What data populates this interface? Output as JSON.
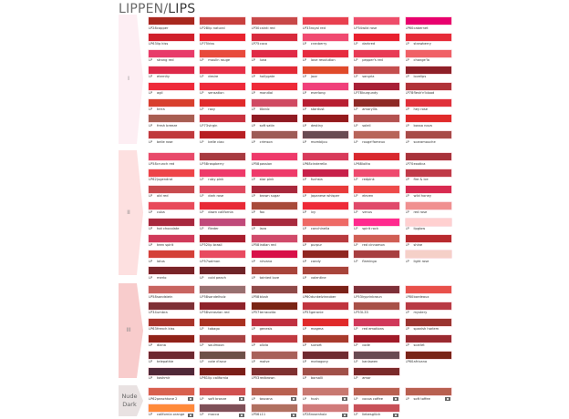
{
  "header": {
    "title_part1": "LIPPEN/",
    "title_part2": "LIPS"
  },
  "sections": [
    {
      "label": "I",
      "color": "#fdeef3",
      "rows": [
        [
          [
            "LP28",
            "copper",
            "#a8281e"
          ],
          [
            "LP28",
            "lip natural",
            "#c8413e"
          ],
          [
            "LP30",
            "cainti red",
            "#c84848"
          ],
          [
            "LP33",
            "royal red",
            "#e8404f"
          ],
          [
            "LP34",
            "wild rose",
            "#ee4d6a"
          ],
          [
            "LP60",
            "cabernet",
            "#e8006e"
          ]
        ],
        [
          [
            "LP63",
            "lip kiss",
            "#d01f2b"
          ],
          [
            "LP75",
            "kiss",
            "#e8232e"
          ],
          [
            "LP75",
            "coco",
            "#d82a3c"
          ],
          [
            "LP",
            "cranberry",
            "#f04a70"
          ],
          [
            "LP",
            "darkred",
            "#e8202e"
          ],
          [
            "LP",
            "strawberry",
            "#e62b38"
          ]
        ],
        [
          [
            "LP",
            "strong red",
            "#e83b6a"
          ],
          [
            "LP",
            "moulin rouge",
            "#e84a3c"
          ],
          [
            "LP",
            "luna",
            "#e02a46"
          ],
          [
            "LP",
            "love revolution",
            "#e62b3f"
          ],
          [
            "LP",
            "pepper's red",
            "#e83a55"
          ],
          [
            "LP",
            "change'la",
            "#f06066"
          ]
        ],
        [
          [
            "LP",
            "eternity",
            "#dd2a4a"
          ],
          [
            "LP",
            "desire",
            "#e83048"
          ],
          [
            "LP",
            "hollygate",
            "#e32a36"
          ],
          [
            "LP",
            "jazz",
            "#e04a2a"
          ],
          [
            "LP",
            "sangria",
            "#c44e4e"
          ],
          [
            "LP",
            "lovelips",
            "#8e2028"
          ]
        ],
        [
          [
            "LP",
            "agil",
            "#ee2a3a"
          ],
          [
            "LP",
            "sensation",
            "#ee2a3a"
          ],
          [
            "LP",
            "mondial",
            "#ee2a38"
          ],
          [
            "LP",
            "everlong",
            "#f0407a"
          ],
          [
            "LP78",
            "burgundy",
            "#a82036"
          ],
          [
            "LP78",
            "flesh'n'blood",
            "#b03238"
          ]
        ],
        [
          [
            "LP",
            "terra",
            "#d8402e"
          ],
          [
            "LP",
            "roxy",
            "#e02a2a"
          ],
          [
            "LP",
            "titanic",
            "#d04a62"
          ],
          [
            "LP",
            "stardust",
            "#b81f32"
          ],
          [
            "LP",
            "amaryllis",
            "#8e2a26"
          ],
          [
            "LP",
            "hey rose",
            "#e0303a"
          ]
        ],
        [
          [
            "LP",
            "fresh breeze",
            "#a85e52"
          ],
          [
            "LP73",
            "virgin",
            "#c8323e"
          ],
          [
            "LP",
            "soft satin",
            "#901a22"
          ],
          [
            "LP",
            "destiny",
            "#941a1c"
          ],
          [
            "LP",
            "soleil",
            "#b45250"
          ],
          [
            "LP",
            "bossa nova",
            "#e02a2a"
          ]
        ],
        [
          [
            "LP",
            "belle rose",
            "#c0383c"
          ],
          [
            "LP",
            "belle ciao",
            "#b81e22"
          ],
          [
            "LP",
            "crimson",
            "#9e5a56"
          ],
          [
            "LP",
            "mombijou",
            "#6a4a52"
          ],
          [
            "LP",
            "rouge'fameux",
            "#b8645a"
          ],
          [
            "LP",
            "scaramouche",
            "#a84a48"
          ]
        ]
      ]
    },
    {
      "label": "II",
      "color": "#fde0e0",
      "rows": [
        [
          [
            "LP58",
            "crunch red",
            "#e84a6a"
          ],
          [
            "LP58",
            "raspberry",
            "#a83a40"
          ],
          [
            "LP58",
            "passion",
            "#ee3a6a"
          ],
          [
            "LP68",
            "cinderella",
            "#d83a5a"
          ],
          [
            "LP68",
            "lolita",
            "#d8282e"
          ],
          [
            "LP70",
            "exotica",
            "#a8323a"
          ]
        ],
        [
          [
            "LP62",
            "jugendrot",
            "#ee4448"
          ],
          [
            "LP",
            "ruby pink",
            "#ee3a6a"
          ],
          [
            "LP",
            "star pink",
            "#ee3a6a"
          ],
          [
            "LP",
            "fuchsia",
            "#c8204a"
          ],
          [
            "LP",
            "redpink",
            "#ee4a6e"
          ],
          [
            "LP",
            "fire & ice",
            "#c03a48"
          ]
        ],
        [
          [
            "LP",
            "old red",
            "#c84a4e"
          ],
          [
            "LP",
            "dark rose",
            "#e04a60"
          ],
          [
            "LP",
            "brown sugar",
            "#a8283c"
          ],
          [
            "LP",
            "japanese whisper",
            "#e83a3a"
          ],
          [
            "LP",
            "eleven",
            "#ee4a4a"
          ],
          [
            "LP",
            "wild honey",
            "#d82a50"
          ]
        ],
        [
          [
            "LP",
            "cuba",
            "#e84a5a"
          ],
          [
            "LP",
            "dawn california",
            "#e82a36"
          ],
          [
            "LP",
            "fox",
            "#a84a3a"
          ],
          [
            "LP",
            "ivy",
            "#ee2a38"
          ],
          [
            "LP",
            "venus",
            "#e04a6a"
          ],
          [
            "LP",
            "red rose",
            "#f09090"
          ]
        ],
        [
          [
            "LP",
            "hot chocolate",
            "#a8283e"
          ],
          [
            "LP",
            "flieder",
            "#c04a7a"
          ],
          [
            "LP",
            "lava",
            "#a82a3e"
          ],
          [
            "LP",
            "conchinella",
            "#ee6a66"
          ],
          [
            "LP",
            "spirit rock",
            "#ff2a8e"
          ],
          [
            "LP",
            "lipglow",
            "#ffd0d0"
          ]
        ],
        [
          [
            "LP",
            "teen spirit",
            "#d03a5a"
          ],
          [
            "LP52",
            "lip brasil",
            "#a81e2e"
          ],
          [
            "LP58",
            "indian red",
            "#d04a6a"
          ],
          [
            "LP",
            "purpur",
            "#b83a3e"
          ],
          [
            "LP",
            "red cinnamon",
            "#d05e54"
          ],
          [
            "LP",
            "shine",
            "#b82a2e"
          ]
        ],
        [
          [
            "LP",
            "lotus",
            "#d44038"
          ],
          [
            "LP57",
            "salmon",
            "#e84a60"
          ],
          [
            "LP",
            "nirvana",
            "#d81048"
          ],
          [
            "LP",
            "candy",
            "#902620"
          ],
          [
            "LP",
            "flamingo",
            "#a83e40"
          ],
          [
            "LP",
            "light rose",
            "#f5d0c8"
          ]
        ],
        [
          [
            "LP",
            "merlo",
            "#7a2428"
          ],
          [
            "LP",
            "cold peach",
            "#6e2428"
          ],
          [
            "LP",
            "tainted love",
            "#a8443a"
          ],
          [
            "LP",
            "valentine",
            "#a8443a"
          ]
        ]
      ]
    },
    {
      "label": "III",
      "color": "#f8cccc",
      "rows": [
        [
          [
            "LP58",
            "sandstein",
            "#c86460"
          ],
          [
            "LP58",
            "sandelholz",
            "#987070"
          ],
          [
            "LP58",
            "blush",
            "#8e4a48"
          ],
          [
            "LP60",
            "dunkelzinnober",
            "#7a2218"
          ],
          [
            "LP53",
            "kyprinbraun",
            "#7e3038"
          ],
          [
            "LP80",
            "bordeaux",
            "#e8504a"
          ]
        ],
        [
          [
            "LP34",
            "umbra",
            "#7e3036"
          ],
          [
            "LP58",
            "venezian red",
            "#8e222a"
          ],
          [
            "LP57",
            "terracotta",
            "#7a2414"
          ],
          [
            "LP53",
            "geranie",
            "#c0343e"
          ],
          [
            "LP53",
            "L33",
            "#a85048"
          ],
          [
            "LP",
            "mystery",
            "#b83a44"
          ]
        ],
        [
          [
            "LP63",
            "french kiss",
            "#a8342a"
          ],
          [
            "LP",
            "tobago",
            "#a83020"
          ],
          [
            "LP",
            "genesis",
            "#c03040"
          ],
          [
            "LP",
            "magma",
            "#e02a2a"
          ],
          [
            "LP",
            "red emotions",
            "#d0385a"
          ],
          [
            "LP",
            "spanish harlem",
            "#9a3430"
          ]
        ],
        [
          [
            "LP",
            "diana",
            "#902218"
          ],
          [
            "LP",
            "soulmoon",
            "#a84242"
          ],
          [
            "LP",
            "olivia",
            "#c03a40"
          ],
          [
            "LP",
            "sunset",
            "#a83a2c"
          ],
          [
            "LP",
            "code",
            "#a01a28"
          ],
          [
            "LP",
            "scarlet",
            "#9a2a30"
          ]
        ],
        [
          [
            "LP",
            "telepathie",
            "#6e2830"
          ],
          [
            "LP",
            "cote d'azur",
            "#6e5048"
          ],
          [
            "LP",
            "malve",
            "#a8605a"
          ],
          [
            "LP",
            "mahagony",
            "#702a30"
          ],
          [
            "LP",
            "kanlawen",
            "#6a4a52"
          ],
          [
            "LP60",
            "africana",
            "#7a2418"
          ]
        ],
        [
          [
            "LP",
            "kashmir",
            "#502838"
          ],
          [
            "LP61",
            "lip california",
            "#7a1e18"
          ],
          [
            "LP53",
            "redbrown",
            "#7e3030"
          ],
          [
            "LP",
            "borsalli",
            "#a05048"
          ],
          [
            "LP",
            "amor",
            "#7a2a2a"
          ]
        ]
      ]
    },
    {
      "label": "Nude Dark",
      "color": "#e9e2e2",
      "nude": true,
      "rows": [
        [
          [
            "LP62",
            "peachtone 2",
            "#d8604e"
          ],
          [
            "LP",
            "soft bronze",
            "#d05050"
          ],
          [
            "LP",
            "toscana",
            "#b86050"
          ],
          [
            "LP",
            "hush",
            "#c87870"
          ],
          [
            "LP",
            "cocoa coffee",
            "#b86050"
          ],
          [
            "LP",
            "soft toffee",
            "#b86050"
          ]
        ],
        [
          [
            "LP",
            "california orange",
            "#ff8a3a"
          ],
          [
            "LP",
            "mocca",
            "#7e5058"
          ],
          [
            "LP56",
            "L11",
            "#b07060"
          ],
          [
            "LP28",
            "rosenholz",
            "#d07a7a"
          ],
          [
            "LP",
            "liebesglück",
            "#c85058"
          ]
        ]
      ]
    }
  ]
}
